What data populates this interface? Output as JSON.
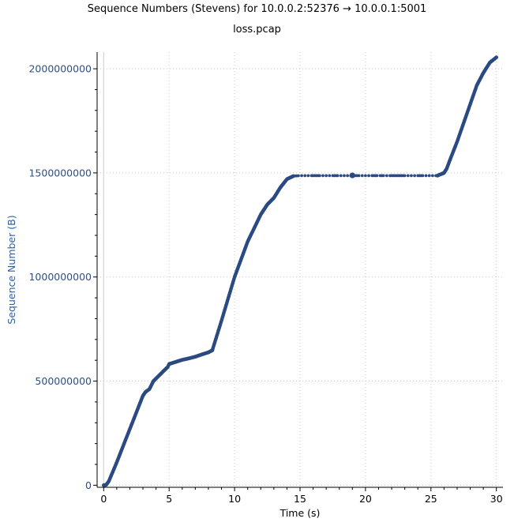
{
  "chart_data": {
    "type": "scatter",
    "title": "Sequence Numbers (Stevens) for 10.0.0.2:52376 → 10.0.0.1:5001",
    "subtitle": "loss.pcap",
    "xlabel": "Time (s)",
    "ylabel": "Sequence Number (B)",
    "xlim": [
      -0.5,
      30.5
    ],
    "ylim": [
      -10000000,
      2080000000
    ],
    "xticks": [
      0,
      5,
      10,
      15,
      20,
      25,
      30
    ],
    "yticks": [
      0,
      500000000,
      1000000000,
      1500000000,
      2000000000
    ],
    "ytick_labels": [
      "0",
      "500000000",
      "1000000000",
      "1500000000",
      "2000000000"
    ],
    "grid": true,
    "series_color": "#2b4a82",
    "series": [
      {
        "segments": [
          {
            "x": [
              0.0,
              0.2,
              0.4,
              0.6,
              1.0,
              1.5,
              2.0,
              2.5,
              3.0,
              3.2,
              3.5,
              3.8,
              4.2,
              4.6,
              4.9,
              5.0,
              5.5,
              6.0,
              6.5,
              7.0,
              7.5,
              8.0,
              8.3
            ],
            "y": [
              0,
              2000000,
              20000000,
              50000000,
              110000000,
              190000000,
              270000000,
              350000000,
              430000000,
              448000000,
              462000000,
              500000000,
              525000000,
              550000000,
              568000000,
              582000000,
              592000000,
              602000000,
              609000000,
              617000000,
              628000000,
              638000000,
              648000000
            ],
            "style": "line"
          },
          {
            "x": [
              8.3,
              9.0,
              10.0,
              11.0,
              12.0,
              12.5,
              13.0,
              13.5,
              14.0,
              14.5
            ],
            "y": [
              648000000,
              790000000,
              1000000000,
              1170000000,
              1300000000,
              1348000000,
              1380000000,
              1430000000,
              1470000000,
              1485000000
            ],
            "style": "line"
          },
          {
            "x": [
              14.5,
              15.0,
              15.5,
              16.0,
              16.5,
              17.0,
              17.5,
              18.0,
              18.5,
              19.0,
              19.5,
              20.0,
              20.5,
              21.0,
              21.5,
              22.0,
              22.5,
              23.0,
              23.5,
              24.0,
              24.5,
              25.0,
              25.5
            ],
            "y": [
              1485000000,
              1487000000,
              1487000000,
              1487000000,
              1487000000,
              1487000000,
              1487000000,
              1487000000,
              1487000000,
              1487000000,
              1487000000,
              1487000000,
              1487000000,
              1487000000,
              1487000000,
              1487000000,
              1487000000,
              1487000000,
              1487000000,
              1487000000,
              1487000000,
              1487000000,
              1487000000
            ],
            "style": "sparse"
          },
          {
            "x": [
              25.5,
              26.0,
              26.2,
              26.5,
              27.0,
              27.5,
              28.0,
              28.5,
              29.0,
              29.5,
              30.0
            ],
            "y": [
              1487000000,
              1500000000,
              1520000000,
              1570000000,
              1650000000,
              1740000000,
              1830000000,
              1920000000,
              1980000000,
              2030000000,
              2055000000
            ],
            "style": "line"
          }
        ],
        "highlight_point": {
          "x": 19.0,
          "y": 1488000000
        }
      }
    ]
  }
}
